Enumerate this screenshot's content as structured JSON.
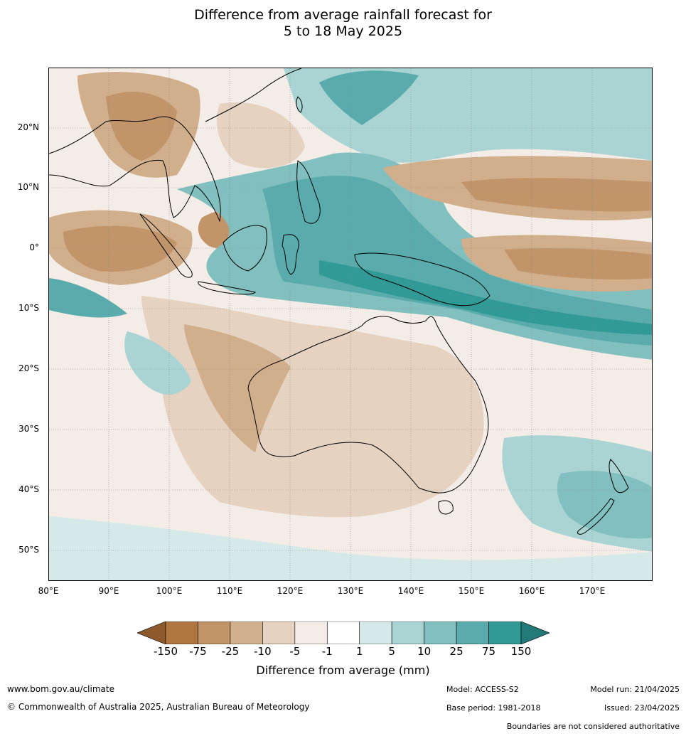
{
  "title_line1": "Difference from average rainfall forecast for",
  "title_line2": "5 to 18 May 2025",
  "lat_labels": [
    "20°N",
    "10°N",
    "0°",
    "10°S",
    "20°S",
    "30°S",
    "40°S",
    "50°S"
  ],
  "lon_labels": [
    "80°E",
    "90°E",
    "100°E",
    "110°E",
    "120°E",
    "130°E",
    "140°E",
    "150°E",
    "160°E",
    "170°E"
  ],
  "colorbar": {
    "labels": [
      "-150",
      "-75",
      "-25",
      "-10",
      "-5",
      "-1",
      "1",
      "5",
      "10",
      "25",
      "75",
      "150"
    ],
    "colors": [
      "#8f5a2b",
      "#b07640",
      "#c29469",
      "#d1ae8c",
      "#e5d2c0",
      "#f4ece6",
      "#ffffff",
      "#d5e9e8",
      "#a9d4d3",
      "#82bfbf",
      "#5aabab",
      "#319996",
      "#227977"
    ],
    "title": "Difference from average (mm)"
  },
  "footer": {
    "website": "www.bom.gov.au/climate",
    "copyright": "© Commonwealth of Australia 2025, Australian Bureau of Meteorology",
    "model": "Model: ACCESS-S2",
    "base_period": "Base period: 1981-2018",
    "model_run": "Model run: 21/04/2025",
    "issued": "Issued: 23/04/2025",
    "disclaimer": "Boundaries are not considered authoritative"
  }
}
